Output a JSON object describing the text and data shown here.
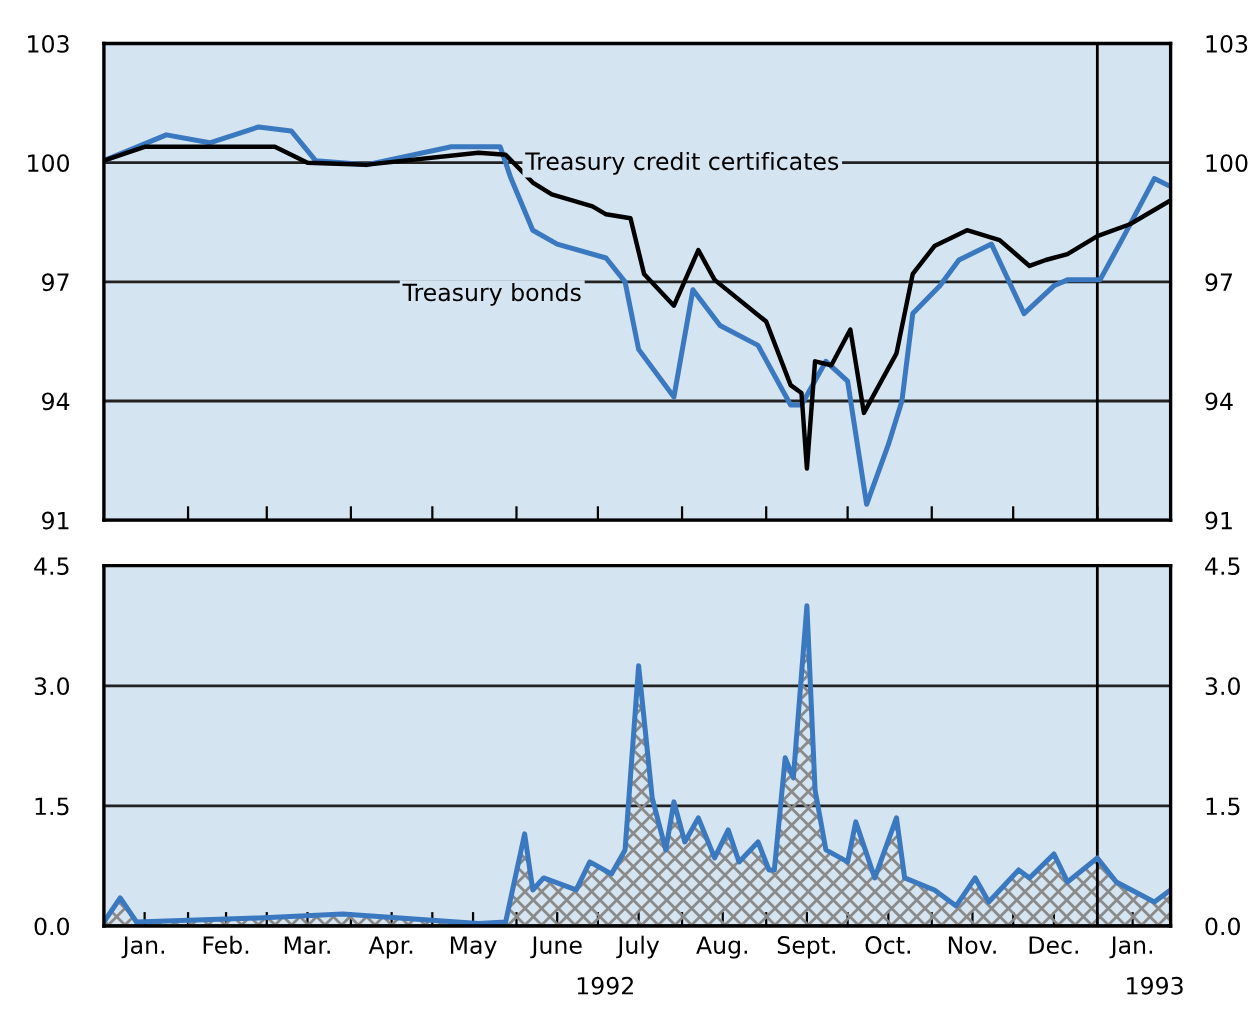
{
  "chart_data": [
    {
      "type": "line",
      "tick_labels": "y",
      "grid": "y",
      "legend": false,
      "line_style": "solid",
      "marker": "none",
      "xlim": [
        "1992-01-01",
        "1993-01-28"
      ],
      "ylim": [
        91,
        103
      ],
      "yticks": [
        91,
        94,
        97,
        100,
        103
      ],
      "y2lim": [
        91,
        103
      ],
      "y2ticks": [
        91,
        94,
        97,
        100,
        103
      ],
      "xticks": [
        {
          "value": "1992-02-01",
          "label": null
        },
        {
          "value": "1992-03-01",
          "label": null
        },
        {
          "value": "1992-04-01",
          "label": null
        },
        {
          "value": "1992-05-01",
          "label": null
        },
        {
          "value": "1992-06-01",
          "label": null
        },
        {
          "value": "1992-07-01",
          "label": null
        },
        {
          "value": "1992-08-01",
          "label": null
        },
        {
          "value": "1992-09-01",
          "label": null
        },
        {
          "value": "1992-10-01",
          "label": null
        },
        {
          "value": "1992-11-01",
          "label": null
        },
        {
          "value": "1992-12-01",
          "label": null
        },
        {
          "value": "1993-01-01",
          "label": null
        }
      ],
      "ref_lines": [
        {
          "axis": "x",
          "value": "1993-01-01",
          "color": "#000000"
        }
      ],
      "series": [
        {
          "name": "Treasury bonds",
          "color": "#3a78c0",
          "x": [
            "1992-01-01",
            "1992-01-24",
            "1992-02-09",
            "1992-02-27",
            "1992-03-10",
            "1992-03-19",
            "1992-04-07",
            "1992-05-08",
            "1992-05-26",
            "1992-05-30",
            "1992-06-07",
            "1992-06-16",
            "1992-07-04",
            "1992-07-11",
            "1992-07-16",
            "1992-07-29",
            "1992-08-05",
            "1992-08-15",
            "1992-08-29",
            "1992-09-10",
            "1992-09-14",
            "1992-09-23",
            "1992-10-01",
            "1992-10-08",
            "1992-10-16",
            "1992-10-21",
            "1992-10-25",
            "1992-11-04",
            "1992-11-11",
            "1992-11-23",
            "1992-12-05",
            "1992-12-16",
            "1992-12-21",
            "1993-01-02",
            "1993-01-10",
            "1993-01-22",
            "1993-01-28"
          ],
          "values": [
            100.05,
            100.7,
            100.5,
            100.9,
            100.8,
            100.05,
            99.95,
            100.4,
            100.4,
            99.6,
            98.3,
            97.95,
            97.6,
            97.0,
            95.3,
            94.1,
            96.8,
            95.9,
            95.4,
            93.9,
            93.9,
            95.0,
            94.5,
            91.4,
            92.9,
            94.0,
            96.2,
            96.9,
            97.55,
            97.95,
            96.2,
            96.9,
            97.05,
            97.05,
            98.05,
            99.6,
            99.4
          ]
        },
        {
          "name": "Treasury credit certificates",
          "color": "#000000",
          "x": [
            "1992-01-01",
            "1992-01-16",
            "1992-03-04",
            "1992-03-16",
            "1992-04-07",
            "1992-05-18",
            "1992-05-28",
            "1992-06-07",
            "1992-06-14",
            "1992-06-29",
            "1992-07-04",
            "1992-07-13",
            "1992-07-18",
            "1992-07-29",
            "1992-08-07",
            "1992-08-13",
            "1992-09-01",
            "1992-09-10",
            "1992-09-14",
            "1992-09-16",
            "1992-09-19",
            "1992-09-25",
            "1992-10-02",
            "1992-10-07",
            "1992-10-19",
            "1992-10-25",
            "1992-11-02",
            "1992-11-14",
            "1992-11-26",
            "1992-12-07",
            "1992-12-13",
            "1992-12-21",
            "1993-01-01",
            "1993-01-13",
            "1993-01-28"
          ],
          "values": [
            100.05,
            100.4,
            100.4,
            100.0,
            99.95,
            100.25,
            100.2,
            99.5,
            99.2,
            98.9,
            98.7,
            98.6,
            97.2,
            96.4,
            97.8,
            97.05,
            96.0,
            94.4,
            94.2,
            92.3,
            95.0,
            94.9,
            95.8,
            93.7,
            95.2,
            97.2,
            97.9,
            98.3,
            98.05,
            97.4,
            97.55,
            97.7,
            98.15,
            98.45,
            99.05
          ]
        }
      ]
    },
    {
      "type": "area",
      "grid": "y",
      "legend": false,
      "line_style": "solid",
      "marker": "none",
      "xlim": [
        "1992-01-01",
        "1993-01-28"
      ],
      "ylim": [
        0,
        4.5
      ],
      "yticks": [
        {
          "value": 0,
          "label": "0.0"
        },
        {
          "value": 1.5,
          "label": "1.5"
        },
        {
          "value": 3,
          "label": "3.0"
        },
        {
          "value": 4.5,
          "label": "4.5"
        }
      ],
      "y2lim": [
        0,
        4.5
      ],
      "y2ticks": [
        {
          "value": 0,
          "label": "0.0"
        },
        {
          "value": 1.5,
          "label": "1.5"
        },
        {
          "value": 3,
          "label": "3.0"
        },
        {
          "value": 4.5,
          "label": "4.5"
        }
      ],
      "xticks": [
        {
          "value": "1992-01-16",
          "label": "Jan."
        },
        {
          "value": "1992-02-15",
          "label": "Feb."
        },
        {
          "value": "1992-03-16",
          "label": "Mar."
        },
        {
          "value": "1992-04-16",
          "label": "Apr."
        },
        {
          "value": "1992-05-16",
          "label": "May"
        },
        {
          "value": "1992-06-16",
          "label": "June"
        },
        {
          "value": "1992-07-16",
          "label": "July"
        },
        {
          "value": "1992-08-16",
          "label": "Aug."
        },
        {
          "value": "1992-09-16",
          "label": "Sept."
        },
        {
          "value": "1992-10-16",
          "label": "Oct."
        },
        {
          "value": "1992-11-16",
          "label": "Nov."
        },
        {
          "value": "1992-12-16",
          "label": "Dec."
        },
        {
          "value": "1993-01-14",
          "label": "Jan."
        },
        {
          "value": "1992-02-01",
          "label": null
        },
        {
          "value": "1992-03-01",
          "label": null
        },
        {
          "value": "1992-04-01",
          "label": null
        },
        {
          "value": "1992-05-01",
          "label": null
        },
        {
          "value": "1992-06-01",
          "label": null
        },
        {
          "value": "1992-07-01",
          "label": null
        },
        {
          "value": "1992-08-01",
          "label": null
        },
        {
          "value": "1992-09-01",
          "label": null
        },
        {
          "value": "1992-10-01",
          "label": null
        },
        {
          "value": "1992-11-01",
          "label": null
        },
        {
          "value": "1992-12-01",
          "label": null
        },
        {
          "value": "1993-01-01",
          "label": null
        }
      ],
      "annotations": [
        "1992",
        "1993"
      ],
      "ref_lines": [
        {
          "axis": "x",
          "value": "1993-01-01",
          "color": "#000000"
        }
      ],
      "series": [
        {
          "color": "#3a78c0",
          "x": [
            "1992-01-01",
            "1992-01-07",
            "1992-01-13",
            "1992-02-27",
            "1992-03-29",
            "1992-05-18",
            "1992-05-28",
            "1992-06-04",
            "1992-06-07",
            "1992-06-11",
            "1992-06-23",
            "1992-06-28",
            "1992-07-06",
            "1992-07-11",
            "1992-07-16",
            "1992-07-21",
            "1992-07-26",
            "1992-07-29",
            "1992-08-02",
            "1992-08-07",
            "1992-08-13",
            "1992-08-18",
            "1992-08-22",
            "1992-08-29",
            "1992-09-02",
            "1992-09-04",
            "1992-09-08",
            "1992-09-11",
            "1992-09-16",
            "1992-09-19",
            "1992-09-23",
            "1992-10-01",
            "1992-10-04",
            "1992-10-11",
            "1992-10-19",
            "1992-10-22",
            "1992-11-02",
            "1992-11-10",
            "1992-11-17",
            "1992-11-22",
            "1992-12-03",
            "1992-12-07",
            "1992-12-16",
            "1992-12-21",
            "1993-01-01",
            "1993-01-08",
            "1993-01-22",
            "1993-01-28"
          ],
          "values": [
            0.05,
            0.35,
            0.05,
            0.1,
            0.15,
            0.03,
            0.05,
            1.15,
            0.45,
            0.6,
            0.45,
            0.8,
            0.65,
            0.95,
            3.25,
            1.6,
            0.95,
            1.55,
            1.05,
            1.35,
            0.85,
            1.2,
            0.8,
            1.05,
            0.7,
            0.7,
            2.1,
            1.85,
            4.0,
            1.7,
            0.95,
            0.8,
            1.3,
            0.6,
            1.35,
            0.6,
            0.45,
            0.25,
            0.6,
            0.3,
            0.7,
            0.6,
            0.9,
            0.55,
            0.85,
            0.55,
            0.3,
            0.45
          ]
        }
      ]
    }
  ]
}
